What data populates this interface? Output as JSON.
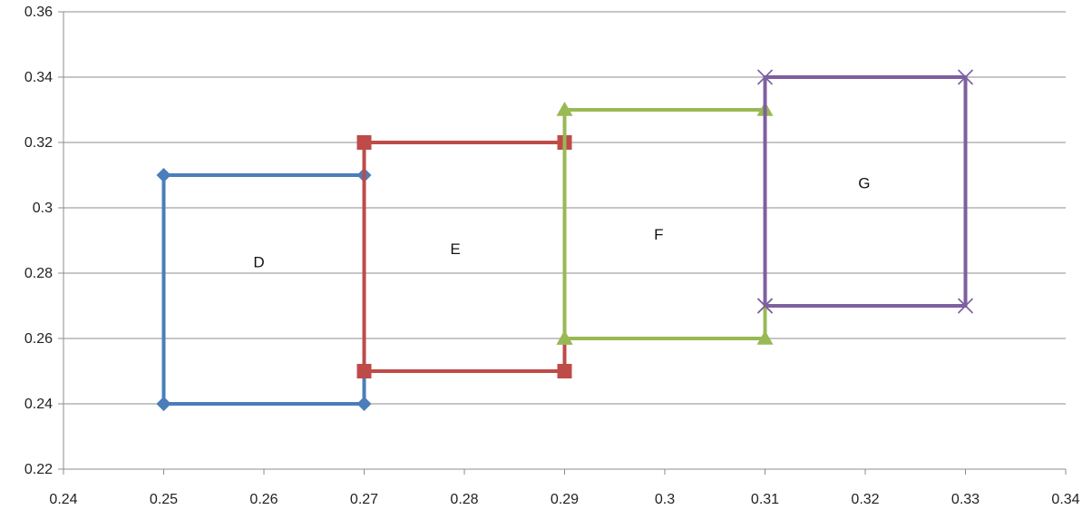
{
  "chart_data": {
    "type": "scatter",
    "title": "",
    "xlabel": "",
    "ylabel": "",
    "xlim": [
      0.24,
      0.34
    ],
    "ylim": [
      0.22,
      0.36
    ],
    "x_ticks": [
      "0.24",
      "0.25",
      "0.26",
      "0.27",
      "0.28",
      "0.29",
      "0.3",
      "0.31",
      "0.32",
      "0.33",
      "0.34"
    ],
    "y_ticks": [
      "0.22",
      "0.24",
      "0.26",
      "0.28",
      "0.3",
      "0.32",
      "0.34",
      "0.36"
    ],
    "grid": "horizontal",
    "legend": "none",
    "series": [
      {
        "color": "#4a7ebb",
        "marker": "diamond",
        "points": [
          [
            0.25,
            0.24
          ],
          [
            0.25,
            0.31
          ],
          [
            0.27,
            0.31
          ],
          [
            0.27,
            0.24
          ],
          [
            0.25,
            0.24
          ]
        ]
      },
      {
        "color": "#be4b48",
        "marker": "square",
        "points": [
          [
            0.27,
            0.25
          ],
          [
            0.27,
            0.32
          ],
          [
            0.29,
            0.32
          ],
          [
            0.29,
            0.25
          ],
          [
            0.27,
            0.25
          ]
        ]
      },
      {
        "color": "#98b954",
        "marker": "triangle",
        "points": [
          [
            0.29,
            0.26
          ],
          [
            0.29,
            0.33
          ],
          [
            0.31,
            0.33
          ],
          [
            0.31,
            0.26
          ],
          [
            0.29,
            0.26
          ]
        ]
      },
      {
        "color": "#7d60a0",
        "marker": "x",
        "points": [
          [
            0.31,
            0.27
          ],
          [
            0.31,
            0.34
          ],
          [
            0.33,
            0.34
          ],
          [
            0.33,
            0.27
          ],
          [
            0.31,
            0.27
          ]
        ]
      }
    ],
    "annotations": [
      {
        "text": "D",
        "x": 0.2595,
        "y": 0.2835
      },
      {
        "text": "E",
        "x": 0.2791,
        "y": 0.2875
      },
      {
        "text": "F",
        "x": 0.2994,
        "y": 0.292
      },
      {
        "text": "G",
        "x": 0.3199,
        "y": 0.3077
      }
    ]
  }
}
